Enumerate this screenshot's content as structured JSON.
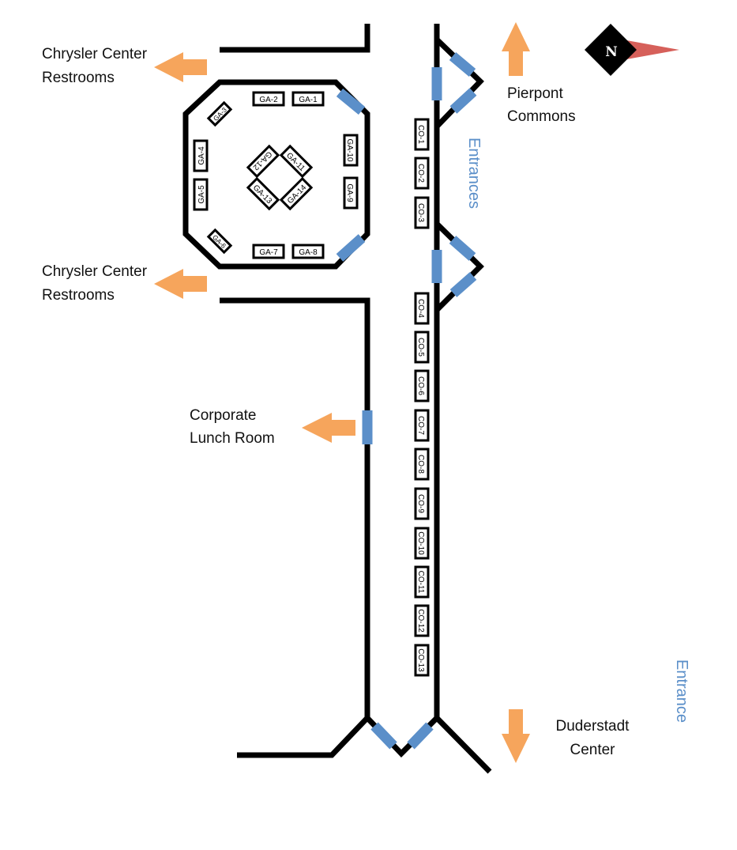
{
  "compass": {
    "label": "N",
    "needle_color": "#d6605a"
  },
  "colors": {
    "wall": "#000000",
    "door": "#5b8fc9",
    "arrow": "#f6a55c",
    "entrance_text": "#5b8fc9"
  },
  "destinations": {
    "restrooms_top": {
      "line1": "Chrysler Center",
      "line2": "Restrooms"
    },
    "restrooms_mid": {
      "line1": "Chrysler Center",
      "line2": "Restrooms"
    },
    "lunch_room": {
      "line1": "Corporate",
      "line2": "Lunch Room"
    },
    "pierpont": {
      "line1": "Pierpont",
      "line2": "Commons"
    },
    "duderstadt": {
      "line1": "Duderstadt",
      "line2": "Center"
    }
  },
  "entrances": {
    "upper": "Entrances",
    "lower": "Entrance"
  },
  "ga_tables": [
    "GA-1",
    "GA-2",
    "GA-3",
    "GA-4",
    "GA-5",
    "GA-6",
    "GA-7",
    "GA-8",
    "GA-9",
    "GA-10",
    "GA-11",
    "GA-12",
    "GA-13",
    "GA-14"
  ],
  "co_tables": [
    "CO-1",
    "CO-2",
    "CO-3",
    "CO-4",
    "CO-5",
    "CO-6",
    "CO-7",
    "CO-8",
    "CO-9",
    "CO-10",
    "CO-11",
    "CO-12",
    "CO-13"
  ]
}
